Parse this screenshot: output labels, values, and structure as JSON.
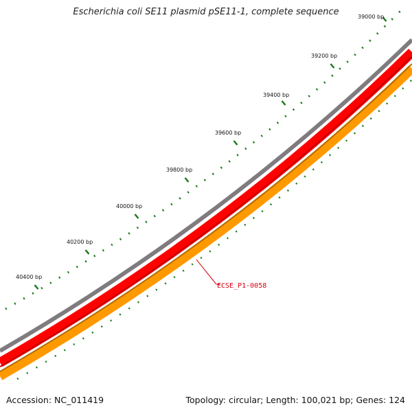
{
  "title": "Escherichia coli SE11 plasmid pSE11-1, complete sequence",
  "footer": {
    "accession": "Accession: NC_011419",
    "summary": "Topology: circular; Length: 100,021 bp; Genes: 124"
  },
  "ruler": {
    "labels": [
      "39000 bp",
      "39200 bp",
      "39400 bp",
      "39600 bp",
      "39800 bp",
      "40000 bp",
      "40200 bp",
      "40400 bp"
    ]
  },
  "gene_label": "ECSE_P1-0058",
  "colors": {
    "ruler": "#1a7a1a",
    "backbone": "#7f7b7f",
    "gene_forward": "#ff0000",
    "gene_reverse": "#ff9900",
    "label": "#d4000f"
  }
}
